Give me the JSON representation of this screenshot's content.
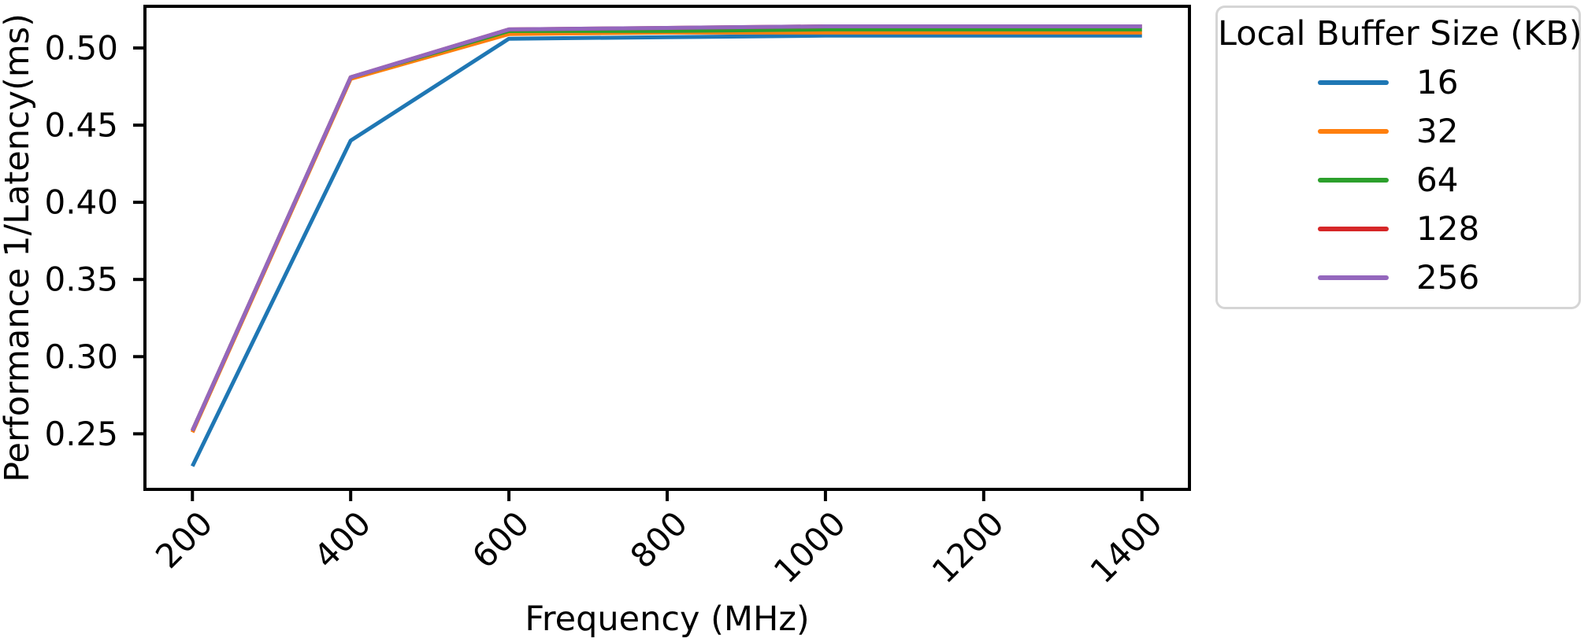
{
  "figure": {
    "background": "#ffffff",
    "axis_color": "#000000"
  },
  "chart_data": {
    "type": "line",
    "title": "",
    "xlabel": "Frequency (MHz)",
    "ylabel": "Performance 1/Latency(ms)",
    "x": [
      200,
      400,
      600,
      800,
      1000,
      1200,
      1400
    ],
    "series": [
      {
        "name": "16",
        "color": "#1f77b4",
        "values": [
          0.229,
          0.44,
          0.506,
          0.507,
          0.508,
          0.508,
          0.508
        ]
      },
      {
        "name": "32",
        "color": "#ff7f0e",
        "values": [
          0.251,
          0.48,
          0.509,
          0.51,
          0.51,
          0.51,
          0.51
        ]
      },
      {
        "name": "64",
        "color": "#2ca02c",
        "values": [
          0.252,
          0.481,
          0.511,
          0.511,
          0.512,
          0.512,
          0.512
        ]
      },
      {
        "name": "128",
        "color": "#d62728",
        "values": [
          0.252,
          0.481,
          0.512,
          0.513,
          0.514,
          0.514,
          0.514
        ]
      },
      {
        "name": "256",
        "color": "#9467bd",
        "values": [
          0.252,
          0.481,
          0.512,
          0.513,
          0.514,
          0.514,
          0.514
        ]
      }
    ],
    "xlim": [
      140,
      1460
    ],
    "ylim": [
      0.214,
      0.527
    ],
    "x_tick_values": [
      200,
      400,
      600,
      800,
      1000,
      1200,
      1400
    ],
    "x_tick_labels": [
      "200",
      "400",
      "600",
      "800",
      "1000",
      "1200",
      "1400"
    ],
    "x_tick_rotation": 45,
    "y_tick_values": [
      0.25,
      0.3,
      0.35,
      0.4,
      0.45,
      0.5
    ],
    "y_tick_labels": [
      "0.25",
      "0.30",
      "0.35",
      "0.40",
      "0.45",
      "0.50"
    ],
    "grid": false,
    "legend": {
      "title": "Local Buffer Size (KB)",
      "location": "outside-right-top",
      "entries": [
        "16",
        "32",
        "64",
        "128",
        "256"
      ]
    }
  }
}
